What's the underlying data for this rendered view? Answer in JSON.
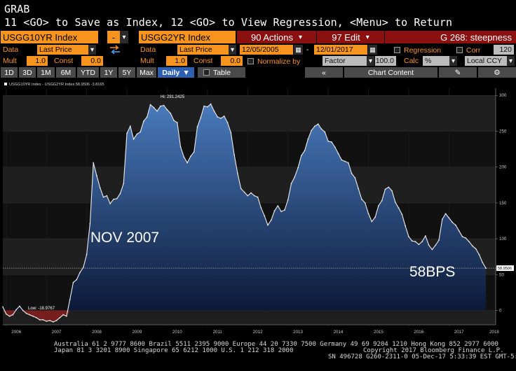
{
  "terminal": {
    "line1": "GRAB",
    "line2": "11 <GO> to Save as Index, 12 <GO> to View Regression, <Menu> to Return"
  },
  "securities": {
    "security1": "USGG10YR Index",
    "security2": "USGG2YR Index",
    "dash_label": "-",
    "actions_label": "90 Actions",
    "edit_label": "97 Edit",
    "tab_label": "G 268: steepness"
  },
  "data_row1": {
    "data_label": "Data",
    "field1": "Last Price",
    "data_label2": "Data",
    "field2": "Last Price",
    "start_date": "12/05/2005",
    "end_date": "12/01/2017",
    "regression_label": "Regression",
    "corr_label": "Corr",
    "corr_value": "120"
  },
  "data_row2": {
    "mult_label": "Mult",
    "mult1": "1.0",
    "const_label": "Const",
    "const1": "0.0",
    "mult_label2": "Mult",
    "mult2": "1.0",
    "const_label2": "Const",
    "const2": "0.0",
    "normalize_label": "Normalize by",
    "factor_label": "Factor",
    "factor_value": "100.0",
    "calc_label": "Calc",
    "calc_value": "%",
    "currency_value": "Local CCY"
  },
  "toolbar": {
    "periods": [
      "1D",
      "3D",
      "1M",
      "6M",
      "YTD",
      "1Y",
      "5Y",
      "Max"
    ],
    "daily_label": "Daily",
    "table_label": "Table",
    "chart_content_label": "Chart Content",
    "double_left_icon": "double-left-chevron-icon",
    "edit_icon": "pencil-icon",
    "gear_icon": "gear-icon"
  },
  "chart_legend": {
    "text": "USGG10YR Index - USGG2YR Index 58.9506 -3.8165"
  },
  "chart_data": {
    "type": "area",
    "title": "",
    "xlabel": "",
    "ylabel": "",
    "ylim": [
      -20,
      310
    ],
    "x": [
      "2005-12",
      "2006-01",
      "2006-02",
      "2006-03",
      "2006-04",
      "2006-05",
      "2006-06",
      "2006-07",
      "2006-08",
      "2006-09",
      "2006-10",
      "2006-11",
      "2006-12",
      "2007-01",
      "2007-02",
      "2007-03",
      "2007-04",
      "2007-05",
      "2007-06",
      "2007-07",
      "2007-08",
      "2007-09",
      "2007-10",
      "2007-11",
      "2007-12",
      "2008-01",
      "2008-02",
      "2008-03",
      "2008-04",
      "2008-05",
      "2008-06",
      "2008-07",
      "2008-08",
      "2008-09",
      "2008-10",
      "2008-11",
      "2008-12",
      "2009-01",
      "2009-02",
      "2009-03",
      "2009-04",
      "2009-05",
      "2009-06",
      "2009-07",
      "2009-08",
      "2009-09",
      "2009-10",
      "2009-11",
      "2009-12",
      "2010-01",
      "2010-02",
      "2010-03",
      "2010-04",
      "2010-05",
      "2010-06",
      "2010-07",
      "2010-08",
      "2010-09",
      "2010-10",
      "2010-11",
      "2010-12",
      "2011-01",
      "2011-02",
      "2011-03",
      "2011-04",
      "2011-05",
      "2011-06",
      "2011-07",
      "2011-08",
      "2011-09",
      "2011-10",
      "2011-11",
      "2011-12",
      "2012-01",
      "2012-02",
      "2012-03",
      "2012-04",
      "2012-05",
      "2012-06",
      "2012-07",
      "2012-08",
      "2012-09",
      "2012-10",
      "2012-11",
      "2012-12",
      "2013-01",
      "2013-02",
      "2013-03",
      "2013-04",
      "2013-05",
      "2013-06",
      "2013-07",
      "2013-08",
      "2013-09",
      "2013-10",
      "2013-11",
      "2013-12",
      "2014-01",
      "2014-02",
      "2014-03",
      "2014-04",
      "2014-05",
      "2014-06",
      "2014-07",
      "2014-08",
      "2014-09",
      "2014-10",
      "2014-11",
      "2014-12",
      "2015-01",
      "2015-02",
      "2015-03",
      "2015-04",
      "2015-05",
      "2015-06",
      "2015-07",
      "2015-08",
      "2015-09",
      "2015-10",
      "2015-11",
      "2015-12",
      "2016-01",
      "2016-02",
      "2016-03",
      "2016-04",
      "2016-05",
      "2016-06",
      "2016-07",
      "2016-08",
      "2016-09",
      "2016-10",
      "2016-11",
      "2016-12",
      "2017-01",
      "2017-02",
      "2017-03",
      "2017-04",
      "2017-05",
      "2017-06",
      "2017-07",
      "2017-08",
      "2017-09",
      "2017-10",
      "2017-11",
      "2017-12"
    ],
    "series": [
      {
        "values": [
          5,
          -5,
          -8,
          -6,
          1,
          6,
          0,
          -4,
          -6,
          -8,
          -10,
          -13,
          -13,
          -15,
          -14,
          -16,
          -14,
          -10,
          -6,
          -8,
          15,
          39,
          43,
          53,
          60,
          78,
          121,
          206,
          188,
          171,
          158,
          160,
          149,
          155,
          156,
          163,
          177,
          247,
          257,
          239,
          246,
          249,
          264,
          270,
          287,
          283,
          278,
          285,
          286,
          280,
          275,
          265,
          262,
          228,
          214,
          206,
          215,
          221,
          256,
          269,
          285,
          284,
          288,
          278,
          270,
          268,
          271,
          262,
          248,
          217,
          191,
          170,
          165,
          160,
          164,
          160,
          158,
          143,
          132,
          119,
          126,
          139,
          146,
          138,
          140,
          154,
          177,
          186,
          199,
          216,
          223,
          239,
          251,
          257,
          260,
          253,
          249,
          236,
          235,
          228,
          219,
          210,
          208,
          206,
          191,
          185,
          170,
          155,
          150,
          135,
          124,
          130,
          146,
          153,
          169,
          172,
          167,
          151,
          143,
          134,
          118,
          103,
          97,
          96,
          92,
          96,
          104,
          91,
          85,
          91,
          98,
          127,
          135,
          129,
          123,
          119,
          111,
          103,
          101,
          96,
          90,
          86,
          78,
          67,
          59
        ]
      }
    ],
    "y_ticks": [
      0,
      50,
      100,
      150,
      200,
      250,
      300
    ],
    "x_ticks": [
      "2006",
      "2007",
      "2008",
      "2009",
      "2010",
      "2011",
      "2012",
      "2013",
      "2014",
      "2015",
      "2016",
      "2017",
      "2018"
    ],
    "grid": true,
    "legend": "top-left",
    "annotations": [
      {
        "text": "NOV 2007"
      },
      {
        "text": "58BPS"
      },
      {
        "text": "Hi: 291.2425"
      },
      {
        "text": "Low: -18.9767"
      }
    ],
    "last_value_tag": "58.9506",
    "colors": {
      "area_top": "#4b7fc4",
      "area_bottom": "#0c1a3a",
      "line": "#e6e6e6",
      "negative": "#7c1f1f",
      "band_light": "#1f1f1f",
      "band_dark": "#111111"
    }
  },
  "footer": {
    "line1": "Australia 61 2 9777 8600 Brazil 5511 2395 9000 Europe 44 20 7330 7500 Germany 49 69 9204 1210 Hong Kong 852 2977 6000",
    "line2": "Japan 81 3 3201 8900        Singapore 65 6212 1000        U.S. 1 212 318 2000",
    "line3": "Copyright 2017 Bloomberg Finance L.P.",
    "line4": "SN 496728 G260-2311-0 05-Dec-17  5:33:39 EST  GMT-5:00"
  },
  "colors": {
    "orange": "#f7941d",
    "dark_red": "#8b1010",
    "selected_blue": "#2f5fb0"
  }
}
